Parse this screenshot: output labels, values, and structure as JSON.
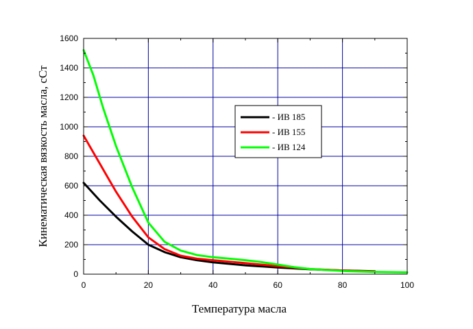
{
  "chart_data": {
    "type": "line",
    "title": "",
    "xlabel": "Температура масла",
    "ylabel": "Кинематическая вязкость масла, сСт",
    "xlim": [
      0,
      100
    ],
    "ylim": [
      0,
      1600
    ],
    "x_ticks": [
      "0",
      "20",
      "40",
      "60",
      "80",
      "100"
    ],
    "y_ticks": [
      "0",
      "200",
      "400",
      "600",
      "800",
      "1000",
      "1200",
      "1400",
      "1600"
    ],
    "grid": true,
    "legend_position": "center-right",
    "series": [
      {
        "name": "- ИВ  185",
        "color": "#000000",
        "points": [
          [
            0,
            620
          ],
          [
            5,
            500
          ],
          [
            10,
            390
          ],
          [
            15,
            290
          ],
          [
            20,
            200
          ],
          [
            25,
            150
          ],
          [
            30,
            115
          ],
          [
            35,
            95
          ],
          [
            40,
            80
          ],
          [
            50,
            60
          ],
          [
            60,
            45
          ],
          [
            70,
            33
          ],
          [
            80,
            25
          ],
          [
            90,
            20
          ]
        ]
      },
      {
        "name": "- ИВ  155",
        "color": "#ff0000",
        "points": [
          [
            0,
            940
          ],
          [
            5,
            750
          ],
          [
            10,
            560
          ],
          [
            15,
            390
          ],
          [
            20,
            250
          ],
          [
            25,
            170
          ],
          [
            30,
            125
          ],
          [
            35,
            105
          ],
          [
            40,
            95
          ],
          [
            50,
            75
          ],
          [
            60,
            55
          ],
          [
            70,
            35
          ],
          [
            80,
            25
          ],
          [
            90,
            18
          ]
        ]
      },
      {
        "name": "- ИВ  124",
        "color": "#00ff00",
        "points": [
          [
            0,
            1520
          ],
          [
            3,
            1350
          ],
          [
            6,
            1130
          ],
          [
            10,
            870
          ],
          [
            15,
            590
          ],
          [
            20,
            350
          ],
          [
            25,
            220
          ],
          [
            30,
            160
          ],
          [
            35,
            130
          ],
          [
            40,
            115
          ],
          [
            45,
            105
          ],
          [
            50,
            95
          ],
          [
            55,
            82
          ],
          [
            60,
            65
          ],
          [
            65,
            48
          ],
          [
            70,
            35
          ],
          [
            75,
            28
          ],
          [
            80,
            22
          ],
          [
            90,
            15
          ],
          [
            100,
            12
          ]
        ]
      }
    ]
  }
}
